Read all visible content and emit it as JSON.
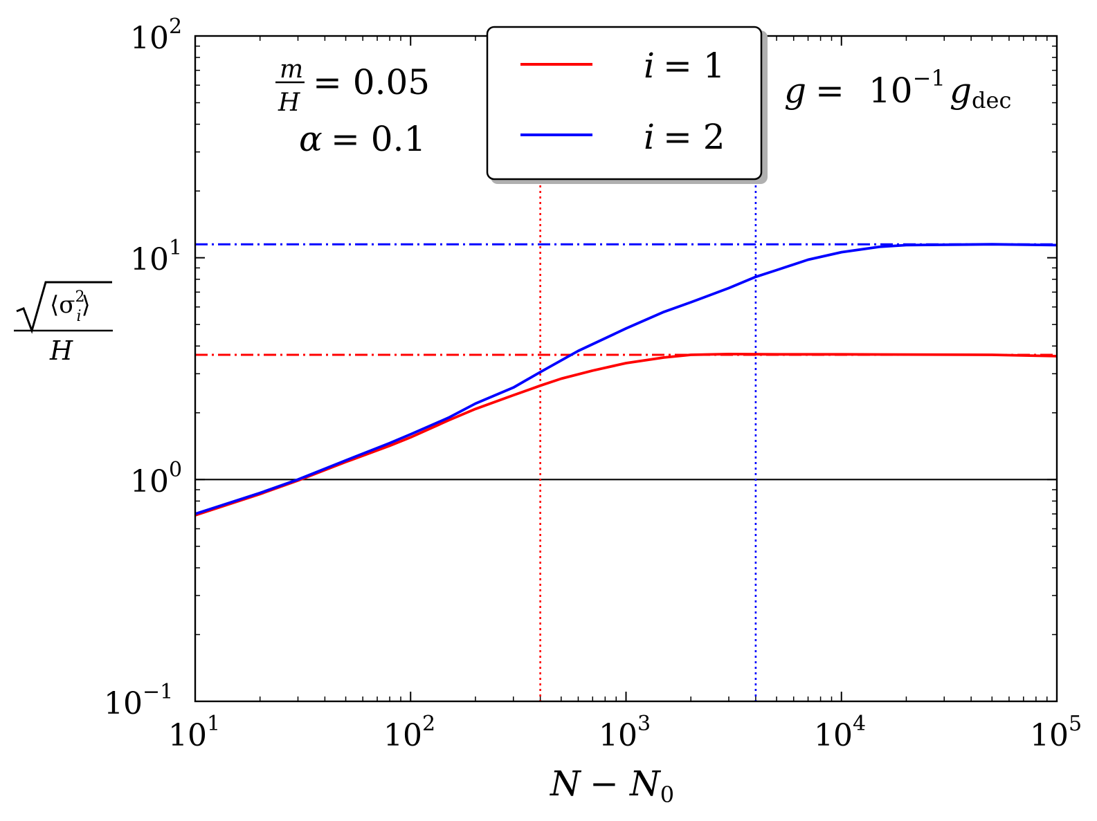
{
  "chart_data": {
    "type": "line",
    "x_scale": "log",
    "y_scale": "log",
    "xlim": [
      10,
      100000
    ],
    "ylim": [
      0.1,
      100
    ],
    "grid": false,
    "legend_placement": "top-center",
    "xlabel": {
      "main": "N",
      "op": "−",
      "sub_main": "N",
      "sub": "0"
    },
    "ylabel": {
      "numer_inner": "⟨σ",
      "sup": "2",
      "sub": "i",
      "close": "⟩",
      "denom": "H"
    },
    "x_ticks": [
      {
        "value": 10,
        "base": "10",
        "exp": "1"
      },
      {
        "value": 100,
        "base": "10",
        "exp": "2"
      },
      {
        "value": 1000,
        "base": "10",
        "exp": "3"
      },
      {
        "value": 10000,
        "base": "10",
        "exp": "4"
      },
      {
        "value": 100000,
        "base": "10",
        "exp": "5"
      }
    ],
    "y_ticks": [
      {
        "value": 0.1,
        "base": "10",
        "exp": "−1"
      },
      {
        "value": 1,
        "base": "10",
        "exp": "0"
      },
      {
        "value": 10,
        "base": "10",
        "exp": "1"
      },
      {
        "value": 100,
        "base": "10",
        "exp": "2"
      }
    ],
    "annotations": {
      "mass": {
        "numer": "m",
        "denom": "H",
        "rhs": "= 0.05"
      },
      "alpha": {
        "lhs": "α",
        "rhs": "= 0.1"
      },
      "coupling": {
        "lhs": "g",
        "eq": "=",
        "base": "10",
        "exp": "−1",
        "g": "g",
        "sub": "dec"
      }
    },
    "reference_lines": {
      "unity": 1,
      "red_plateau": 3.65,
      "blue_plateau": 11.5,
      "red_vertical_x": 400,
      "blue_vertical_x": 4000
    },
    "series": [
      {
        "name": "i = 1",
        "label_lhs": "i",
        "label_rhs": "= 1",
        "color": "#ff0000",
        "x": [
          10,
          20,
          30,
          50,
          80,
          100,
          150,
          200,
          300,
          400,
          500,
          700,
          1000,
          1500,
          2000,
          3000,
          5000,
          10000,
          20000,
          50000,
          100000
        ],
        "y": [
          0.69,
          0.86,
          0.99,
          1.2,
          1.42,
          1.55,
          1.85,
          2.08,
          2.4,
          2.65,
          2.85,
          3.1,
          3.35,
          3.55,
          3.65,
          3.68,
          3.67,
          3.67,
          3.66,
          3.65,
          3.6
        ]
      },
      {
        "name": "i = 2",
        "label_lhs": "i",
        "label_rhs": "= 2",
        "color": "#0000ff",
        "x": [
          10,
          20,
          30,
          50,
          80,
          100,
          150,
          200,
          300,
          400,
          600,
          1000,
          1500,
          2000,
          3000,
          4000,
          5000,
          7000,
          10000,
          15000,
          20000,
          50000,
          100000
        ],
        "y": [
          0.7,
          0.87,
          1.0,
          1.22,
          1.46,
          1.6,
          1.9,
          2.2,
          2.6,
          3.05,
          3.8,
          4.8,
          5.7,
          6.3,
          7.3,
          8.2,
          8.8,
          9.8,
          10.6,
          11.2,
          11.4,
          11.5,
          11.4
        ]
      }
    ]
  }
}
